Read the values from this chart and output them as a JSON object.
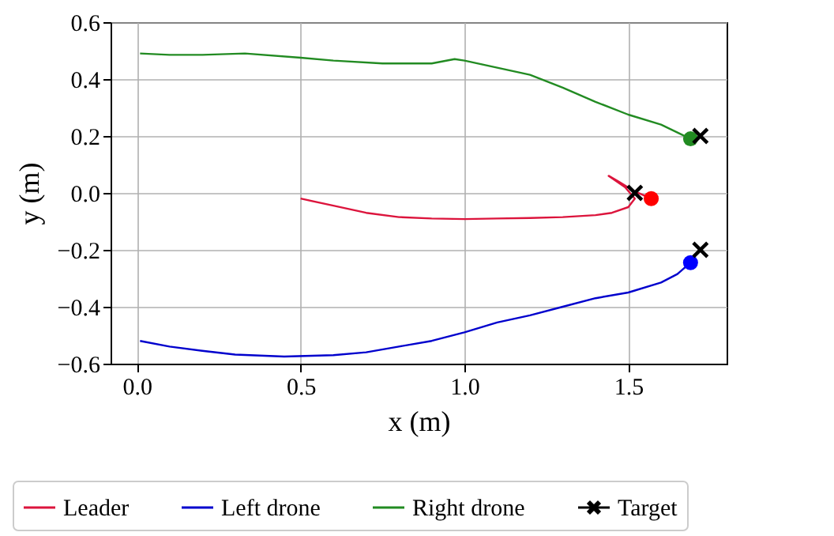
{
  "chart_data": {
    "type": "line",
    "xlabel": "x (m)",
    "ylabel": "y (m)",
    "xlim": [
      -0.08,
      1.8
    ],
    "ylim": [
      -0.6,
      0.6
    ],
    "xticks": [
      {
        "value": 0,
        "label": "0.0"
      },
      0.5,
      {
        "value": 1,
        "label": "1.0"
      },
      1.5
    ],
    "yticks": [
      {
        "value": -0.6,
        "label": "−0.6"
      },
      {
        "value": -0.4,
        "label": "−0.4"
      },
      {
        "value": -0.2,
        "label": "−0.2"
      },
      {
        "value": 0,
        "label": "0.0"
      },
      0.2,
      0.4,
      0.6
    ],
    "grid": true,
    "legend": "bottom",
    "series": [
      {
        "name": "Leader",
        "color": "#dc143c",
        "x": [
          0.5,
          0.6,
          0.7,
          0.8,
          0.9,
          1.0,
          1.1,
          1.2,
          1.3,
          1.4,
          1.45,
          1.5,
          1.52,
          1.49,
          1.44,
          1.47,
          1.52,
          1.57
        ],
        "values": [
          -0.02,
          -0.045,
          -0.07,
          -0.085,
          -0.09,
          -0.092,
          -0.09,
          -0.088,
          -0.085,
          -0.078,
          -0.07,
          -0.05,
          -0.02,
          0.02,
          0.06,
          0.04,
          0.005,
          -0.02
        ]
      },
      {
        "name": "Left drone",
        "color": "#0000cd",
        "x": [
          0.01,
          0.1,
          0.2,
          0.3,
          0.45,
          0.6,
          0.7,
          0.8,
          0.9,
          1.0,
          1.1,
          1.2,
          1.3,
          1.4,
          1.5,
          1.6,
          1.65,
          1.69
        ],
        "values": [
          -0.52,
          -0.54,
          -0.555,
          -0.568,
          -0.575,
          -0.57,
          -0.56,
          -0.54,
          -0.52,
          -0.49,
          -0.455,
          -0.43,
          -0.4,
          -0.37,
          -0.35,
          -0.315,
          -0.285,
          -0.245
        ]
      },
      {
        "name": "Right drone",
        "color": "#228b22",
        "x": [
          0.01,
          0.1,
          0.2,
          0.33,
          0.5,
          0.6,
          0.75,
          0.9,
          0.97,
          1.0,
          1.1,
          1.2,
          1.3,
          1.4,
          1.5,
          1.6,
          1.69
        ],
        "values": [
          0.49,
          0.485,
          0.485,
          0.49,
          0.475,
          0.465,
          0.455,
          0.455,
          0.47,
          0.465,
          0.44,
          0.415,
          0.37,
          0.32,
          0.275,
          0.24,
          0.19
        ]
      },
      {
        "type": "scatter",
        "color": "#ff0000",
        "marker": "circle",
        "x": [
          1.57
        ],
        "values": [
          -0.02
        ]
      },
      {
        "type": "scatter",
        "color": "#0000ff",
        "marker": "circle",
        "x": [
          1.69
        ],
        "values": [
          -0.245
        ]
      },
      {
        "type": "scatter",
        "color": "#228b22",
        "marker": "circle",
        "x": [
          1.69
        ],
        "values": [
          0.19
        ]
      },
      {
        "type": "scatter",
        "name": "Target",
        "color": "#000000",
        "marker": "cross",
        "x": [
          1.52,
          1.72,
          1.72
        ],
        "values": [
          0.0,
          0.2,
          -0.2
        ]
      }
    ]
  }
}
